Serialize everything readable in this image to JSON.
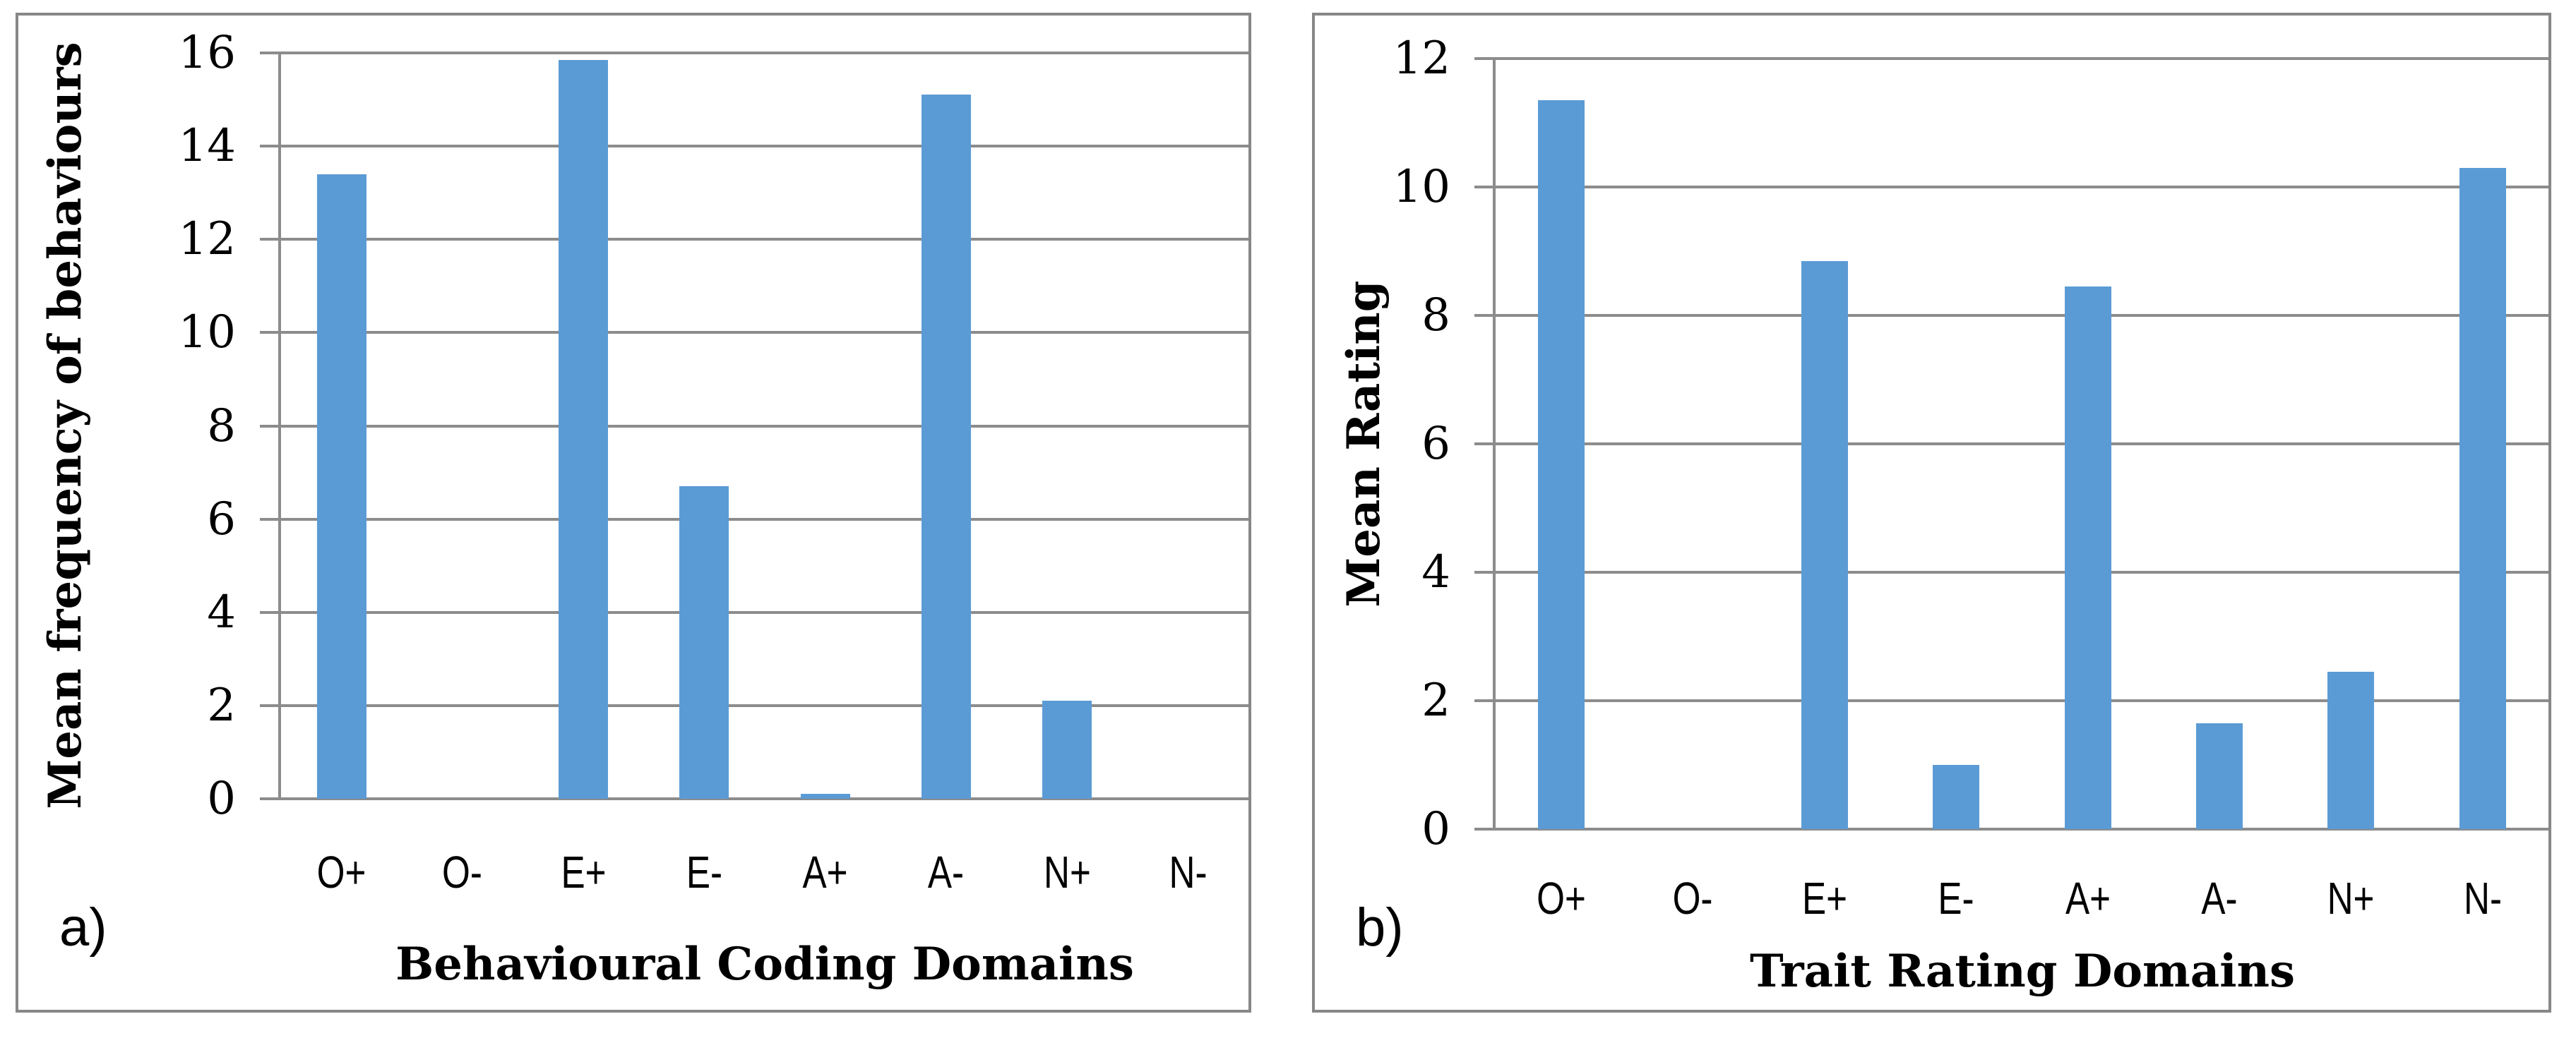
{
  "colors": {
    "bar": "#5B9BD5",
    "gridline": "#8C8C8C",
    "frame": "#878787",
    "text": "#000000",
    "background": "#FFFFFF"
  },
  "panels": [
    {
      "letter": "a)"
    },
    {
      "letter": "b)"
    }
  ],
  "chart_data": [
    {
      "type": "bar",
      "panel": "a",
      "title": "",
      "categories": [
        "O+",
        "O-",
        "E+",
        "E-",
        "A+",
        "A-",
        "N+",
        "N-"
      ],
      "values": [
        13.4,
        0,
        15.85,
        6.7,
        0.1,
        15.1,
        2.1,
        0
      ],
      "xlabel": "Behavioural Coding Domains",
      "ylabel": "Mean frequency of behaviours",
      "ylim": [
        0,
        16
      ],
      "ytick_step": 2,
      "ytick_labels": [
        "0",
        "2",
        "4",
        "6",
        "8",
        "10",
        "12",
        "14",
        "16"
      ],
      "grid": true,
      "legend": "none"
    },
    {
      "type": "bar",
      "panel": "b",
      "title": "",
      "categories": [
        "O+",
        "O-",
        "E+",
        "E-",
        "A+",
        "A-",
        "N+",
        "N-"
      ],
      "values": [
        11.35,
        0,
        8.85,
        1.0,
        8.45,
        1.65,
        2.45,
        10.3
      ],
      "xlabel": "Trait Rating Domains",
      "ylabel": "Mean Rating",
      "ylim": [
        0,
        12
      ],
      "ytick_step": 2,
      "ytick_labels": [
        "0",
        "2",
        "4",
        "6",
        "8",
        "10",
        "12"
      ],
      "grid": true,
      "legend": "none"
    }
  ]
}
